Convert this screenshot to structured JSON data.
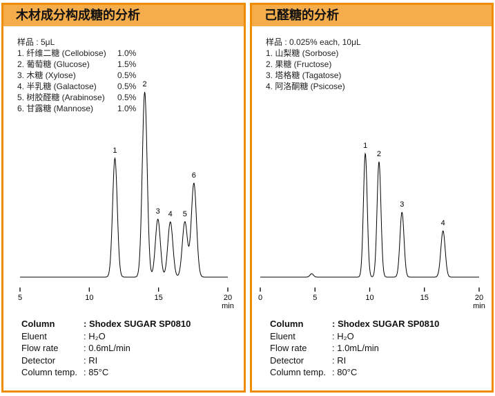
{
  "chart_data": [
    {
      "type": "line",
      "title": "木材成分构成糖的分析",
      "xlabel": "min",
      "xlim": [
        5,
        20
      ],
      "xticks": [
        5,
        10,
        15,
        20
      ],
      "sample_label": "样品 : 5μL",
      "components": [
        {
          "name": "1. 纤维二糖 (Cellobiose)",
          "conc": "1.0%"
        },
        {
          "name": "2. 葡萄糖 (Glucose)",
          "conc": "1.5%"
        },
        {
          "name": "3. 木糖 (Xylose)",
          "conc": "0.5%"
        },
        {
          "name": "4. 半乳糖 (Galactose)",
          "conc": "0.5%"
        },
        {
          "name": "5. 树胶醛糖 (Arabinose)",
          "conc": "0.5%"
        },
        {
          "name": "6. 甘露糖 (Mannose)",
          "conc": "1.0%"
        }
      ],
      "peaks": [
        {
          "label": "1",
          "rt": 11.85,
          "height": 172
        },
        {
          "label": "2",
          "rt": 14.0,
          "height": 268
        },
        {
          "label": "3",
          "rt": 14.95,
          "height": 84
        },
        {
          "label": "4",
          "rt": 15.85,
          "height": 80
        },
        {
          "label": "5",
          "rt": 16.9,
          "height": 80
        },
        {
          "label": "6",
          "rt": 17.55,
          "height": 136
        }
      ],
      "conditions": [
        {
          "key": "Column",
          "value": ": Shodex SUGAR SP0810",
          "bold": true
        },
        {
          "key": "Eluent",
          "value": ": H₂O"
        },
        {
          "key": "Flow rate",
          "value": ": 0.6mL/min"
        },
        {
          "key": "Detector",
          "value": ": RI"
        },
        {
          "key": "Column temp.",
          "value": ": 85°C"
        }
      ]
    },
    {
      "type": "line",
      "title": "己醛糖的分析",
      "xlabel": "min",
      "xlim": [
        0,
        20
      ],
      "xticks": [
        0,
        5,
        10,
        15,
        20
      ],
      "sample_label": "样品 : 0.025% each, 10μL",
      "components": [
        {
          "name": "1. 山梨糖 (Sorbose)",
          "conc": ""
        },
        {
          "name": "2. 果糖 (Fructose)",
          "conc": ""
        },
        {
          "name": "3. 塔格糖 (Tagatose)",
          "conc": ""
        },
        {
          "name": "4. 阿洛酮糖 (Psicose)",
          "conc": ""
        }
      ],
      "peaks": [
        {
          "label": "",
          "rt": 4.7,
          "height": 5
        },
        {
          "label": "1",
          "rt": 9.6,
          "height": 179
        },
        {
          "label": "2",
          "rt": 10.85,
          "height": 167
        },
        {
          "label": "3",
          "rt": 12.95,
          "height": 94
        },
        {
          "label": "4",
          "rt": 16.7,
          "height": 67
        }
      ],
      "conditions": [
        {
          "key": "Column",
          "value": ": Shodex SUGAR SP0810",
          "bold": true
        },
        {
          "key": "Eluent",
          "value": ": H₂O"
        },
        {
          "key": "Flow rate",
          "value": ": 1.0mL/min"
        },
        {
          "key": "Detector",
          "value": ": RI"
        },
        {
          "key": "Column temp.",
          "value": ": 80°C"
        }
      ]
    }
  ]
}
